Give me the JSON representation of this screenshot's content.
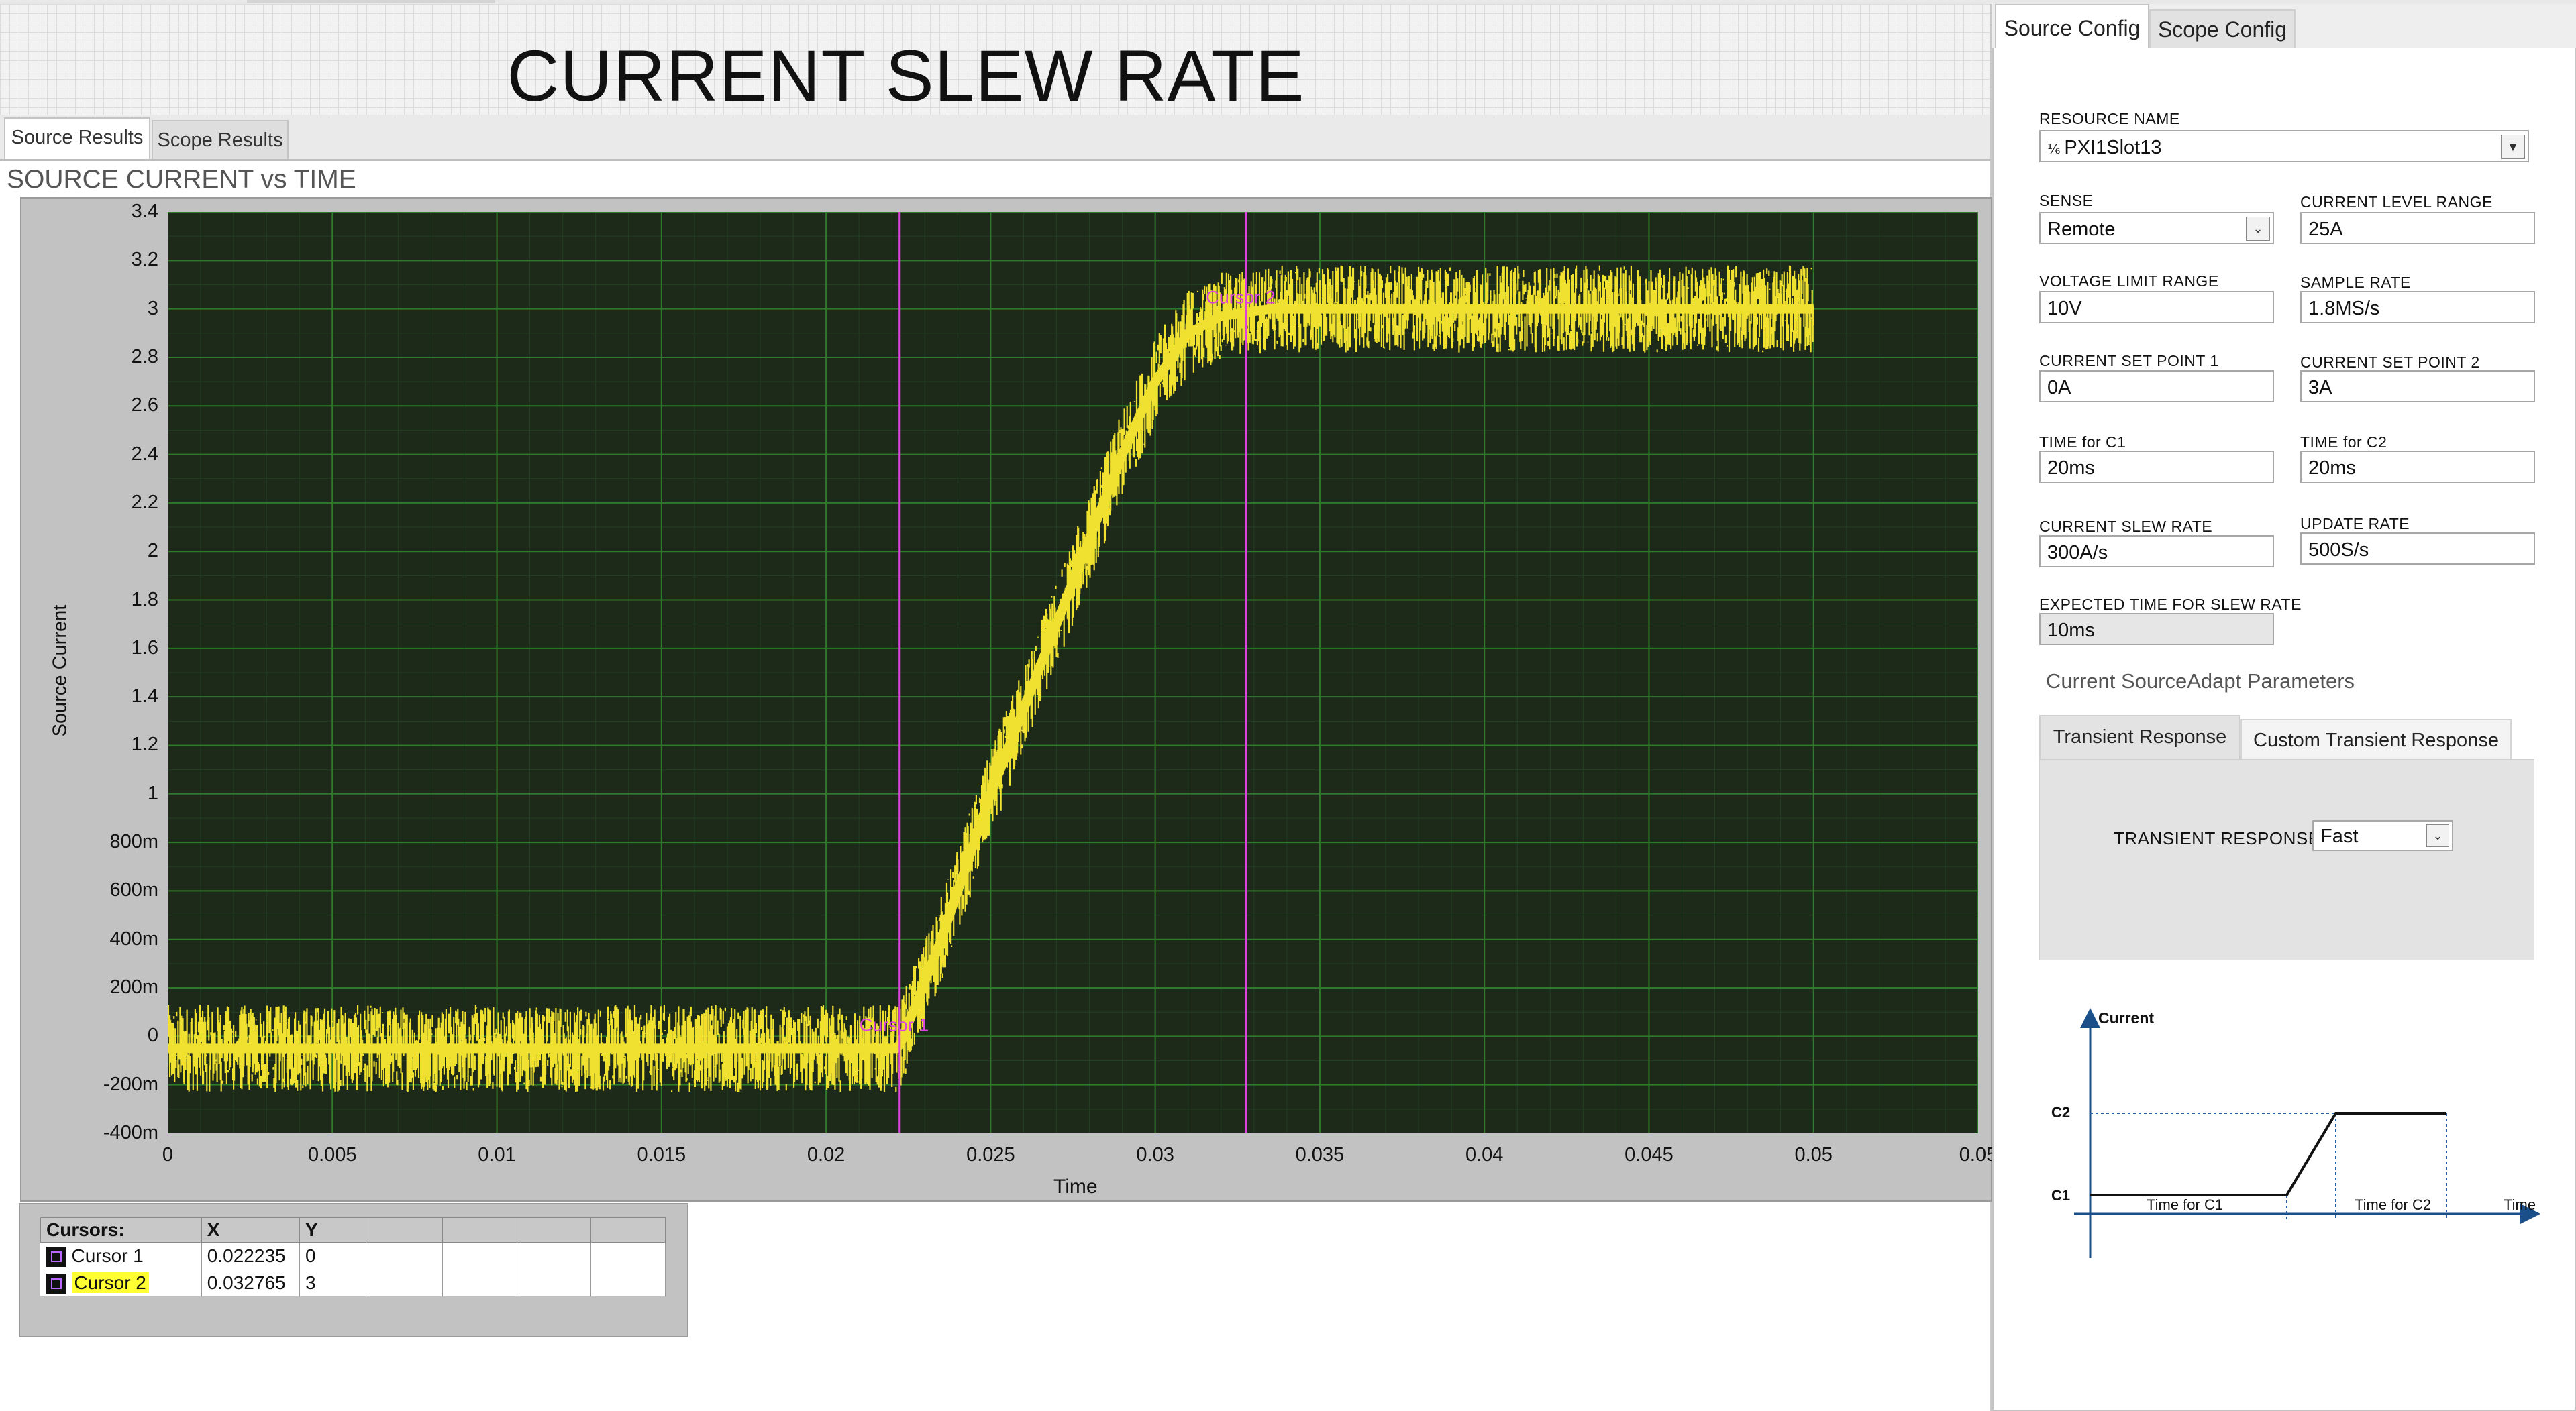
{
  "app": {
    "title": "CURRENT SLEW RATE",
    "tabs": [
      "Source Results",
      "Scope Results"
    ],
    "active_tab": "Source Results"
  },
  "graph": {
    "title": "SOURCE CURRENT vs TIME",
    "ylabel": "Source Current",
    "xlabel": "Time",
    "y_ticks": [
      "3.4",
      "3.2",
      "3",
      "2.8",
      "2.6",
      "2.4",
      "2.2",
      "2",
      "1.8",
      "1.6",
      "1.4",
      "1.2",
      "1",
      "800m",
      "600m",
      "400m",
      "200m",
      "0",
      "-200m",
      "-400m"
    ],
    "x_ticks": [
      "0",
      "0.005",
      "0.01",
      "0.015",
      "0.02",
      "0.025",
      "0.03",
      "0.035",
      "0.04",
      "0.045",
      "0.05",
      "0.05"
    ],
    "cursor1_label": "Cursor 1",
    "cursor2_label": "Cursor 2"
  },
  "chart_data": {
    "type": "line",
    "xlabel": "Time",
    "ylabel": "Source Current",
    "xlim": [
      0,
      0.055
    ],
    "ylim": [
      -0.4,
      3.4
    ],
    "grid": true,
    "trace_color": "#f0e130",
    "background": "#1d2a1a",
    "grid_color": "#2f7a2a",
    "cursor_color": "#dd44dd",
    "series": [
      {
        "x": [
          0,
          0.005,
          0.01,
          0.015,
          0.02,
          0.0222,
          0.0235,
          0.025,
          0.027,
          0.029,
          0.03,
          0.031,
          0.032,
          0.0335,
          0.035,
          0.04,
          0.045,
          0.05
        ],
        "y": [
          -0.05,
          -0.05,
          -0.05,
          -0.05,
          -0.05,
          -0.05,
          0.4,
          1.0,
          1.7,
          2.4,
          2.7,
          2.9,
          2.97,
          3.0,
          3.0,
          3.0,
          3.0,
          3.0
        ],
        "noise": 0.18
      }
    ],
    "cursors": [
      {
        "name": "Cursor 1",
        "x": 0.022235,
        "y": 0
      },
      {
        "name": "Cursor 2",
        "x": 0.032765,
        "y": 3
      }
    ]
  },
  "cursor_table": {
    "headers": [
      "Cursors:",
      "X",
      "Y"
    ],
    "rows": [
      {
        "name": "Cursor 1",
        "x": "0.022235",
        "y": "0"
      },
      {
        "name": "Cursor 2",
        "x": "0.032765",
        "y": "3"
      }
    ]
  },
  "config": {
    "tabs": [
      "Source Config",
      "Scope Config"
    ],
    "active_tab": "Source Config",
    "resource_name_label": "RESOURCE NAME",
    "resource_name": "PXI1Slot13",
    "sense_label": "SENSE",
    "sense": "Remote",
    "current_level_range_label": "CURRENT LEVEL RANGE",
    "current_level_range": "25A",
    "voltage_limit_range_label": "VOLTAGE LIMIT RANGE",
    "voltage_limit_range": "10V",
    "sample_rate_label": "SAMPLE RATE",
    "sample_rate": "1.8MS/s",
    "current_set_point_1_label": "CURRENT SET POINT 1",
    "current_set_point_1": "0A",
    "current_set_point_2_label": "CURRENT SET POINT 2",
    "current_set_point_2": "3A",
    "time_c1_label": "TIME for C1",
    "time_c1": "20ms",
    "time_c2_label": "TIME for C2",
    "time_c2": "20ms",
    "current_slew_rate_label": "CURRENT SLEW RATE",
    "current_slew_rate": "300A/s",
    "update_rate_label": "UPDATE RATE",
    "update_rate": "500S/s",
    "expected_time_label": "EXPECTED TIME FOR SLEW RATE",
    "expected_time": "10ms",
    "adapt_title": "Current SourceAdapt Parameters",
    "sub_tabs": [
      "Transient Response",
      "Custom Transient Response"
    ],
    "transient_response_label": "TRANSIENT RESPONSE",
    "transient_response": "Fast",
    "diagram": {
      "current_label": "Current",
      "c2_label": "C2",
      "c1_label": "C1",
      "time_c1_label": "Time for C1",
      "time_c2_label": "Time for C2",
      "time_label": "Time"
    }
  }
}
